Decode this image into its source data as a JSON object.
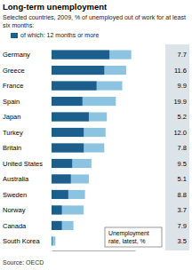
{
  "chart_data": {
    "type": "bar",
    "orientation": "horizontal",
    "title": "Long-term unemployment",
    "subtitle": "Selected countries, 2009, % of unemployed out of work for at least six months:",
    "categories": [
      "Germany",
      "Greece",
      "France",
      "Spain",
      "Japan",
      "Turkey",
      "Britain",
      "United States",
      "Australia",
      "Sweden",
      "Norway",
      "Canada",
      "South Korea"
    ],
    "series": [
      {
        "color": "#8cc3e0",
        "values": [
          62,
          58,
          55,
          50,
          43,
          42,
          41,
          31,
          29,
          26,
          25,
          17,
          3
        ]
      },
      {
        "name": "of which: 12 months or more",
        "color": "#1c5e8c",
        "values": [
          45,
          41,
          35,
          24,
          29,
          25,
          25,
          16,
          15,
          13,
          8,
          8,
          0.5
        ]
      }
    ],
    "stacked": false,
    "xlim": [
      0,
      65
    ],
    "xticks": [],
    "tick_labels": false,
    "unemployment_rate": {
      "title": "Unemployment rate, latest, %",
      "values": [
        7.7,
        11.6,
        9.9,
        19.9,
        5.2,
        12,
        7.8,
        9.5,
        5.1,
        8.8,
        3.7,
        7.9,
        3.5
      ],
      "value_labels": [
        "7.7",
        "11.6",
        "9.9",
        "19.9",
        "5.2",
        "12.0",
        "7.8",
        "9.5",
        "5.1",
        "8.8",
        "3.7",
        "7.9",
        "3.5"
      ]
    },
    "source": "Source: OECD"
  }
}
